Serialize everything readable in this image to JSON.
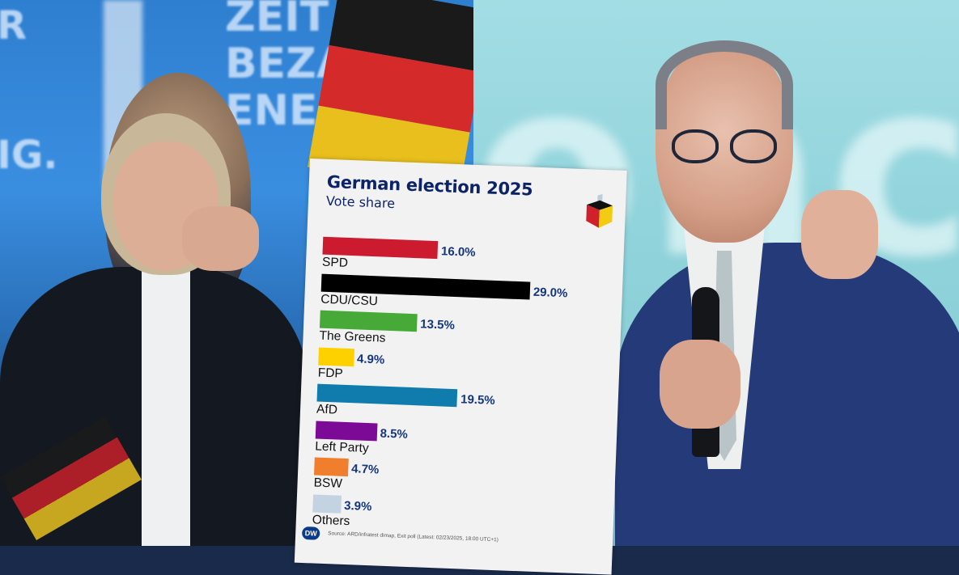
{
  "photos": {
    "left_banner_text": [
      "R",
      "IG.",
      "ZEIT FÜR",
      "BEZAHLBARE",
      "ENERGIE"
    ],
    "left_banner_visible": {
      "top_left": "R",
      "mid_left": "IG.",
      "center": "ZEIT FÜ\nBEZA\nENERGI"
    },
    "right_backdrop_text": "onc"
  },
  "card": {
    "title": "German election 2025",
    "subtitle": "Vote share",
    "icon": "ballot-box-icon",
    "brand_logo": "DW",
    "source": "Source: ARD/infratest dimap, Exit poll (Latest: 02/23/2025, 18:00 UTC+1)"
  },
  "chart_data": {
    "type": "bar",
    "orientation": "horizontal",
    "title": "German election 2025",
    "subtitle": "Vote share",
    "xlabel": "",
    "ylabel": "",
    "unit": "%",
    "grid": false,
    "legend": "none",
    "categories": [
      "SPD",
      "CDU/CSU",
      "The Greens",
      "FDP",
      "AfD",
      "Left Party",
      "BSW",
      "Others"
    ],
    "values": [
      16.0,
      29.0,
      13.5,
      4.9,
      19.5,
      8.5,
      4.7,
      3.9
    ],
    "value_labels": [
      "16.0%",
      "29.0%",
      "13.5%",
      "4.9%",
      "19.5%",
      "8.5%",
      "4.7%",
      "3.9%"
    ],
    "colors": [
      "#cc1a2e",
      "#000000",
      "#46a938",
      "#fdd100",
      "#0f7cad",
      "#7d0a96",
      "#f07e2c",
      "#c3d3e1"
    ],
    "source": "Source: ARD/infratest dimap, Exit poll (Latest: 02/23/2025, 18:00 UTC+1)"
  },
  "colors": {
    "title": "#0d2368",
    "value_label": "#12357f",
    "card_bg": "#f3f2f3"
  }
}
